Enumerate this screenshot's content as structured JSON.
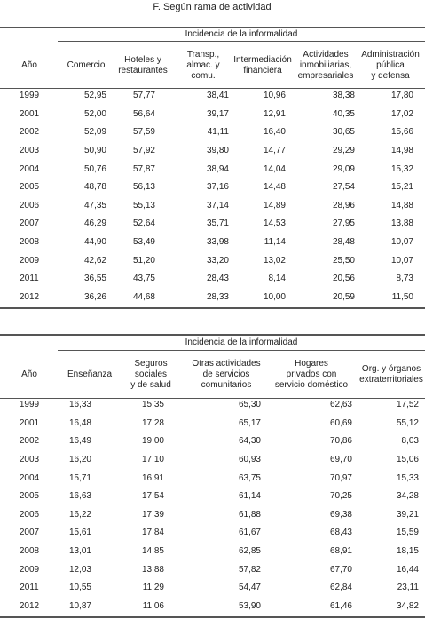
{
  "title": "F. Según rama de actividad",
  "tables": [
    {
      "group_header": "Incidencia de la informalidad",
      "columns": [
        [
          "Año"
        ],
        [
          "Comercio"
        ],
        [
          "Hoteles y",
          "restaurantes"
        ],
        [
          "Transp.,",
          "almac. y",
          "comu."
        ],
        [
          "Intermediación",
          "financiera"
        ],
        [
          "Actividades",
          "inmobiliarias,",
          "empresariales"
        ],
        [
          "Administración",
          "pública",
          "y defensa"
        ]
      ],
      "rows": [
        [
          "1999",
          "52,95",
          "57,77",
          "38,41",
          "10,96",
          "38,38",
          "17,80"
        ],
        [
          "2001",
          "52,00",
          "56,64",
          "39,17",
          "12,91",
          "40,35",
          "17,02"
        ],
        [
          "2002",
          "52,09",
          "57,59",
          "41,11",
          "16,40",
          "30,65",
          "15,66"
        ],
        [
          "2003",
          "50,90",
          "57,92",
          "39,80",
          "14,77",
          "29,29",
          "14,98"
        ],
        [
          "2004",
          "50,76",
          "57,87",
          "38,94",
          "14,04",
          "29,09",
          "15,32"
        ],
        [
          "2005",
          "48,78",
          "56,13",
          "37,16",
          "14,48",
          "27,54",
          "15,21"
        ],
        [
          "2006",
          "47,35",
          "55,13",
          "37,14",
          "14,89",
          "28,96",
          "14,88"
        ],
        [
          "2007",
          "46,29",
          "52,64",
          "35,71",
          "14,53",
          "27,95",
          "13,88"
        ],
        [
          "2008",
          "44,90",
          "53,49",
          "33,98",
          "11,14",
          "28,48",
          "10,07"
        ],
        [
          "2009",
          "42,62",
          "51,20",
          "33,20",
          "13,02",
          "25,50",
          "10,07"
        ],
        [
          "2011",
          "36,55",
          "43,75",
          "28,43",
          "8,14",
          "20,56",
          "8,73"
        ],
        [
          "2012",
          "36,26",
          "44,68",
          "28,33",
          "10,00",
          "20,59",
          "11,50"
        ]
      ]
    },
    {
      "group_header": "Incidencia de la informalidad",
      "columns": [
        [
          "Año"
        ],
        [
          "Enseñanza"
        ],
        [
          "Seguros",
          "sociales",
          "y de salud"
        ],
        [
          "Otras actividades",
          "de servicios",
          "comunitarios"
        ],
        [
          "Hogares",
          "privados con",
          "servicio doméstico"
        ],
        [
          "Org. y órganos",
          "extraterritoriales"
        ]
      ],
      "rows": [
        [
          "1999",
          "16,33",
          "15,35",
          "65,30",
          "62,63",
          "17,52"
        ],
        [
          "2001",
          "16,48",
          "17,28",
          "65,17",
          "60,69",
          "55,12"
        ],
        [
          "2002",
          "16,49",
          "19,00",
          "64,30",
          "70,86",
          "8,03"
        ],
        [
          "2003",
          "16,20",
          "17,10",
          "60,93",
          "69,70",
          "15,06"
        ],
        [
          "2004",
          "15,71",
          "16,91",
          "63,75",
          "70,97",
          "15,33"
        ],
        [
          "2005",
          "16,63",
          "17,54",
          "61,14",
          "70,25",
          "34,28"
        ],
        [
          "2006",
          "16,22",
          "17,39",
          "61,88",
          "69,38",
          "39,21"
        ],
        [
          "2007",
          "15,61",
          "17,84",
          "61,67",
          "68,43",
          "15,59"
        ],
        [
          "2008",
          "13,01",
          "14,85",
          "62,85",
          "68,91",
          "18,15"
        ],
        [
          "2009",
          "12,03",
          "13,88",
          "57,82",
          "67,70",
          "16,44"
        ],
        [
          "2011",
          "10,55",
          "11,29",
          "54,47",
          "62,84",
          "23,11"
        ],
        [
          "2012",
          "10,87",
          "11,06",
          "53,90",
          "61,46",
          "34,82"
        ]
      ]
    }
  ]
}
